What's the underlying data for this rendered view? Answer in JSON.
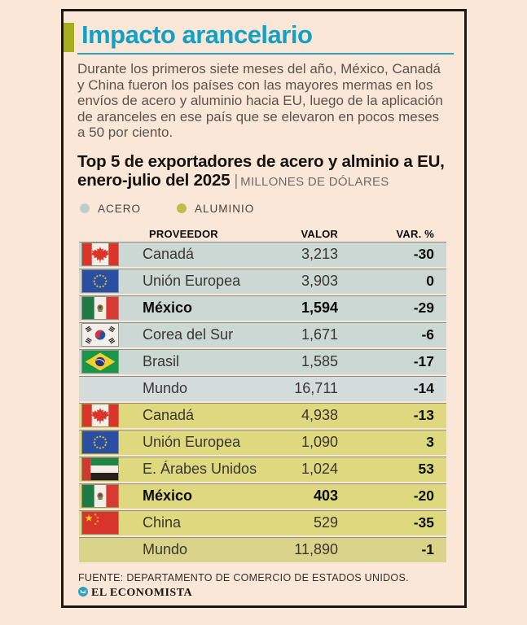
{
  "header": {
    "title": "Impacto arancelario",
    "intro": "Durante los primeros siete meses del año, México, Canadá y China fueron los países con las mayores mermas en los envíos de acero y aluminio hacia EU, luego de la aplicación de aranceles en ese país que se elevaron en pocos meses a 50 por ciento.",
    "subtitle": "Top 5 de exportadores de acero y alminio a EU, enero-julio del 2025",
    "separator": "|",
    "units": "MILLONES DE DÓLARES"
  },
  "legend": {
    "items": [
      {
        "label": "ACERO",
        "color": "#b9cfc8"
      },
      {
        "label": "ALUMINIO",
        "color": "#c2bc4f"
      }
    ]
  },
  "table": {
    "columns": [
      "PROVEEDOR",
      "VALOR",
      "VAR. %"
    ],
    "rows": [
      {
        "flag": "canada",
        "name": "Canadá",
        "value": "3,213",
        "var": "-30",
        "section": "acero",
        "bold": false,
        "world": false
      },
      {
        "flag": "eu",
        "name": "Unión Europea",
        "value": "3,903",
        "var": "0",
        "section": "acero",
        "bold": false,
        "world": false
      },
      {
        "flag": "mexico",
        "name": "México",
        "value": "1,594",
        "var": "-29",
        "section": "acero",
        "bold": true,
        "world": false
      },
      {
        "flag": "korea",
        "name": "Corea del Sur",
        "value": "1,671",
        "var": "-6",
        "section": "acero",
        "bold": false,
        "world": false
      },
      {
        "flag": "brazil",
        "name": "Brasil",
        "value": "1,585",
        "var": "-17",
        "section": "acero",
        "bold": false,
        "world": false
      },
      {
        "flag": "world",
        "name": "Mundo",
        "value": "16,711",
        "var": "-14",
        "section": "acero",
        "bold": false,
        "world": true
      },
      {
        "flag": "canada",
        "name": "Canadá",
        "value": "4,938",
        "var": "-13",
        "section": "aluminio",
        "bold": false,
        "world": false
      },
      {
        "flag": "eu",
        "name": "Unión Europea",
        "value": "1,090",
        "var": "3",
        "section": "aluminio",
        "bold": false,
        "world": false
      },
      {
        "flag": "uae",
        "name": "E. Árabes Unidos",
        "value": "1,024",
        "var": "53",
        "section": "aluminio",
        "bold": false,
        "world": false
      },
      {
        "flag": "mexico",
        "name": "México",
        "value": "403",
        "var": "-20",
        "section": "aluminio",
        "bold": true,
        "world": false
      },
      {
        "flag": "china",
        "name": "China",
        "value": "529",
        "var": "-35",
        "section": "aluminio",
        "bold": false,
        "world": false
      },
      {
        "flag": "world",
        "name": "Mundo",
        "value": "11,890",
        "var": "-1",
        "section": "aluminio",
        "bold": false,
        "world": true
      }
    ]
  },
  "footer": {
    "source": "FUENTE: DEPARTAMENTO DE COMERCIO DE ESTADOS UNIDOS.",
    "brand": "EL ECONOMISTA"
  },
  "colors": {
    "background": "#fbe7d8",
    "card_border": "#1b1712",
    "title_teal": "#149fc4",
    "accent_olive": "#a5ae21",
    "acero_row": "#ccd8d3",
    "acero_world_row": "#d4dddb",
    "aluminio_row": "#ded87f",
    "aluminio_world_row": "#d9d489"
  },
  "chart_data": {
    "type": "table",
    "title": "Top 5 de exportadores de acero y alminio a EU, enero-julio del 2025",
    "units": "MILLONES DE DÓLARES",
    "columns": [
      "PROVEEDOR",
      "VALOR",
      "VAR. %"
    ],
    "groups": [
      {
        "name": "ACERO",
        "rows": [
          [
            "Canadá",
            3213,
            -30
          ],
          [
            "Unión Europea",
            3903,
            0
          ],
          [
            "México",
            1594,
            -29
          ],
          [
            "Corea del Sur",
            1671,
            -6
          ],
          [
            "Brasil",
            1585,
            -17
          ],
          [
            "Mundo",
            16711,
            -14
          ]
        ]
      },
      {
        "name": "ALUMINIO",
        "rows": [
          [
            "Canadá",
            4938,
            -13
          ],
          [
            "Unión Europea",
            1090,
            3
          ],
          [
            "E. Árabes Unidos",
            1024,
            53
          ],
          [
            "México",
            403,
            -20
          ],
          [
            "China",
            529,
            -35
          ],
          [
            "Mundo",
            11890,
            -1
          ]
        ]
      }
    ]
  }
}
